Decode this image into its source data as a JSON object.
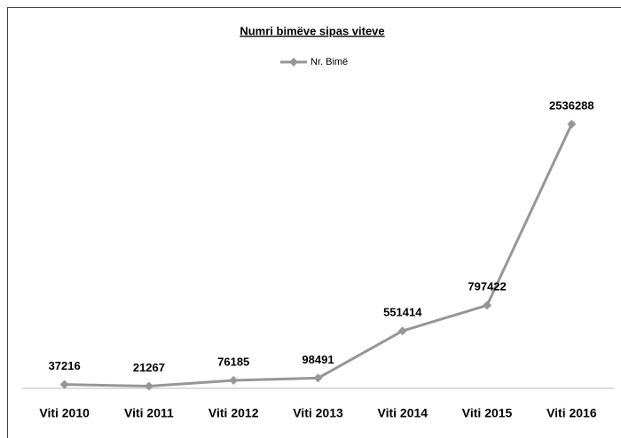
{
  "chart_data": {
    "type": "line",
    "title": "Numri bimëve sipas viteve",
    "categories": [
      "Viti 2010",
      "Viti 2011",
      "Viti 2012",
      "Viti 2013",
      "Viti 2014",
      "Viti 2015",
      "Viti 2016"
    ],
    "series": [
      {
        "name": "Nr. Bimë",
        "color": "#969696",
        "values": [
          37216,
          21267,
          76185,
          98491,
          551414,
          797422,
          2536288
        ]
      }
    ],
    "ylim": [
      0,
      3000000
    ],
    "legend": "top"
  }
}
